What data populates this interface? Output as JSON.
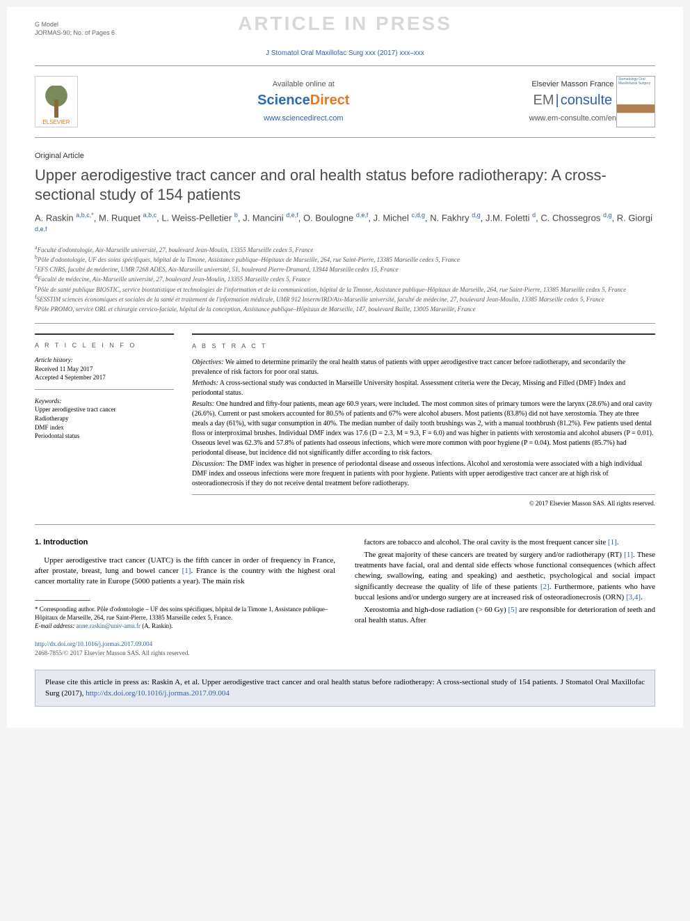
{
  "gmodel": {
    "line1": "G Model",
    "line2": "JORMAS-90; No. of Pages 6"
  },
  "watermark": "ARTICLE IN PRESS",
  "journal_ref": "J Stomatol Oral Maxillofac Surg xxx (2017) xxx–xxx",
  "header": {
    "elsevier": "ELSEVIER",
    "avail": "Available online at",
    "sd_sci": "Science",
    "sd_dir": "Direct",
    "sd_url": "www.sciencedirect.com",
    "em_title": "Elsevier Masson France",
    "em_em": "EM",
    "em_cons": "consulte",
    "em_url": "www.em-consulte.com/en",
    "cover_text": "Stomatology Oral Maxillofacial Surgery"
  },
  "article_type": "Original Article",
  "title": "Upper aerodigestive tract cancer and oral health status before radiotherapy: A cross-sectional study of 154 patients",
  "authors_html": "A. Raskin <sup>a,b,c,*</sup>, M. Ruquet <sup>a,b,c</sup>, L. Weiss-Pelletier <sup>b</sup>, J. Mancini <sup>d,e,f</sup>, O. Boulogne <sup>d,e,f</sup>, J. Michel <sup>c,d,g</sup>, N. Fakhry <sup>d,g</sup>, J.M. Foletti <sup>d</sup>, C. Chossegros <sup>d,g</sup>, R. Giorgi <sup>d,e,f</sup>",
  "affiliations": [
    "a Faculté d'odontologie, Aix-Marseille université, 27, boulevard Jean-Moulin, 13355 Marseille cedex 5, France",
    "b Pôle d'odontologie, UF des soins spécifiques, hôpital de la Timone, Assistance publique–Hôpitaux de Marseille, 264, rue Saint-Pierre, 13385 Marseille cedex 5, France",
    "c EFS CNRS, faculté de médecine, UMR 7268 ADES, Aix-Marseille université, 51, boulevard Pierre-Dramard, 13944 Marseille cedex 15, France",
    "d Faculté de médecine, Aix-Marseille université, 27, boulevard Jean-Moulin, 13355 Marseille cedex 5, France",
    "e Pôle de santé publique BIOSTIC, service biostatistique et technologies de l'information et de la communication, hôpital de la Timone, Assistance publique–Hôpitaux de Marseille, 264, rue Saint-Pierre, 13385 Marseille cedex 5, France",
    "f SESSTIM sciences économiques et sociales de la santé et traitement de l'information médicale, UMR 912 Inserm/IRD/Aix-Marseille université, faculté de médecine, 27, boulevard Jean-Moulin, 13385 Marseille cedex 5, France",
    "g Pôle PROMO, service ORL et chirurgie cervico-faciale, hôpital de la conception, Assistance publique–Hôpitaux de Marseille, 147, boulevard Baille, 13005 Marseille, France"
  ],
  "info": {
    "head": "A R T I C L E   I N F O",
    "history_label": "Article history:",
    "received": "Received 11 May 2017",
    "accepted": "Accepted 4 September 2017",
    "keywords_label": "Keywords:",
    "keywords": [
      "Upper aerodigestive tract cancer",
      "Radiotherapy",
      "DMF index",
      "Periodontal status"
    ]
  },
  "abstract": {
    "head": "A B S T R A C T",
    "objectives_label": "Objectives:",
    "objectives": "We aimed to determine primarily the oral health status of patients with upper aerodigestive tract cancer before radiotherapy, and secondarily the prevalence of risk factors for poor oral status.",
    "methods_label": "Methods:",
    "methods": "A cross-sectional study was conducted in Marseille University hospital. Assessment criteria were the Decay, Missing and Filled (DMF) Index and periodontal status.",
    "results_label": "Results:",
    "results": "One hundred and fifty-four patients, mean age 60.9 years, were included. The most common sites of primary tumors were the larynx (28.6%) and oral cavity (26.6%). Current or past smokers accounted for 80.5% of patients and 67% were alcohol abusers. Most patients (83.8%) did not have xerostomia. They ate three meals a day (61%), with sugar consumption in 40%. The median number of daily tooth brushings was 2, with a manual toothbrush (81.2%). Few patients used dental floss or interproximal brushes. Individual DMF index was 17.6 (D = 2.3, M = 9.3, F = 6.0) and was higher in patients with xerostomia and alcohol abusers (P = 0.01). Osseous level was 62.3% and 57.8% of patients had osseous infections, which were more common with poor hygiene (P = 0.04). Most patients (85.7%) had periodontal disease, but incidence did not significantly differ according to risk factors.",
    "discussion_label": "Discussion:",
    "discussion": "The DMF index was higher in presence of periodontal disease and osseous infections. Alcohol and xerostomia were associated with a high individual DMF index and osseous infections were more frequent in patients with poor hygiene. Patients with upper aerodigestive tract cancer are at high risk of osteoradionecrosis if they do not receive dental treatment before radiotherapy.",
    "copyright": "© 2017 Elsevier Masson SAS. All rights reserved."
  },
  "intro": {
    "head": "1. Introduction",
    "p1a": "Upper aerodigestive tract cancer (UATC) is the fifth cancer in order of frequency in France, after prostate, breast, lung and bowel cancer ",
    "p1b": ". France is the country with the highest oral cancer mortality rate in Europe (5000 patients a year). The main risk",
    "p2": "factors are tobacco and alcohol. The oral cavity is the most frequent cancer site ",
    "p3a": "The great majority of these cancers are treated by surgery and/or radiotherapy (RT) ",
    "p3b": ". These treatments have facial, oral and dental side effects whose functional consequences (which affect chewing, swallowing, eating and speaking) and aesthetic, psychological and social impact significantly decrease the quality of life of these patients ",
    "p3c": ". Furthermore, patients who have buccal lesions and/or undergo surgery are at increased risk of osteoradionecrosis (ORN) ",
    "p4a": "Xerostomia and high-dose radiation (> 60 Gy) ",
    "p4b": " are responsible for deterioration of teeth and oral health status. After"
  },
  "refs": {
    "r1": "[1]",
    "r2": "[2]",
    "r34": "[3,4]",
    "r5": "[5]"
  },
  "footnote": {
    "corr_label": "* Corresponding author.",
    "corr": " Pôle d'odontologie – UF des soins spécifiques, hôpital de la Timone 1, Assistance publique–Hôpitaux de Marseille, 264, rue Saint-Pierre, 13385 Marseille cedex 5, France.",
    "email_label": "E-mail address:",
    "email": "anne.raskin@univ-amu.fr",
    "email_who": " (A. Raskin)."
  },
  "doi": "http://dx.doi.org/10.1016/j.jormas.2017.09.004",
  "issn": "2468-7855/© 2017 Elsevier Masson SAS. All rights reserved.",
  "cite": {
    "text": "Please cite this article in press as: Raskin A, et al. Upper aerodigestive tract cancer and oral health status before radiotherapy: A cross-sectional study of 154 patients. J Stomatol Oral Maxillofac Surg (2017), ",
    "link": "http://dx.doi.org/10.1016/j.jormas.2017.09.004"
  },
  "colors": {
    "link": "#3060a8",
    "elsevier_orange": "#e87722",
    "watermark": "#d8d8d8",
    "cite_bg": "#e6eaf0"
  }
}
